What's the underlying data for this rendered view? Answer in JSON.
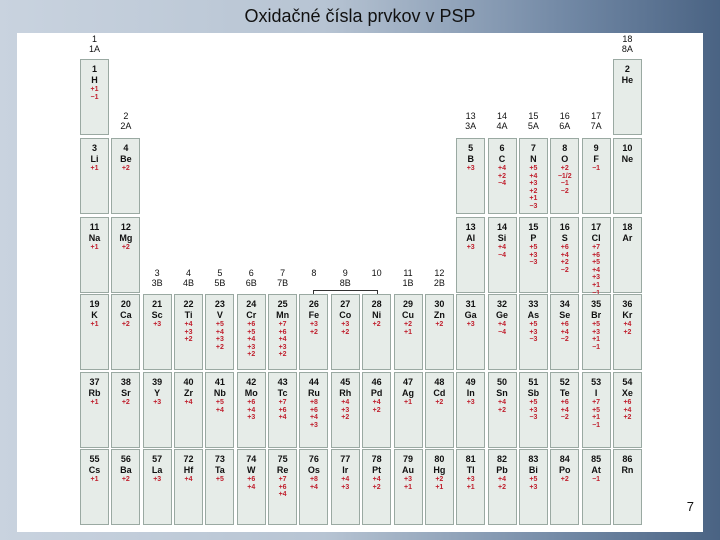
{
  "title": "Oxidačné čísla prvkov v PSP",
  "page_number": "7",
  "accent_color": "#c0202e",
  "group_headers": [
    {
      "col": 1,
      "row": 0,
      "num": "1",
      "lab": "1A"
    },
    {
      "col": 18,
      "row": 0,
      "num": "18",
      "lab": "8A"
    },
    {
      "col": 2,
      "row": 1,
      "num": "2",
      "lab": "2A"
    },
    {
      "col": 13,
      "row": 1,
      "num": "13",
      "lab": "3A"
    },
    {
      "col": 14,
      "row": 1,
      "num": "14",
      "lab": "4A"
    },
    {
      "col": 15,
      "row": 1,
      "num": "15",
      "lab": "5A"
    },
    {
      "col": 16,
      "row": 1,
      "num": "16",
      "lab": "6A"
    },
    {
      "col": 17,
      "row": 1,
      "num": "17",
      "lab": "7A"
    },
    {
      "col": 3,
      "row": 3,
      "num": "3",
      "lab": "3B"
    },
    {
      "col": 4,
      "row": 3,
      "num": "4",
      "lab": "4B"
    },
    {
      "col": 5,
      "row": 3,
      "num": "5",
      "lab": "5B"
    },
    {
      "col": 6,
      "row": 3,
      "num": "6",
      "lab": "6B"
    },
    {
      "col": 7,
      "row": 3,
      "num": "7",
      "lab": "7B"
    },
    {
      "col": 8,
      "row": 3,
      "num": "8",
      "lab": ""
    },
    {
      "col": 9,
      "row": 3,
      "num": "9",
      "lab": "8B"
    },
    {
      "col": 10,
      "row": 3,
      "num": "10",
      "lab": ""
    },
    {
      "col": 11,
      "row": 3,
      "num": "11",
      "lab": "1B"
    },
    {
      "col": 12,
      "row": 3,
      "num": "12",
      "lab": "2B"
    }
  ],
  "elements": [
    {
      "row": 1,
      "col": 1,
      "z": "1",
      "sym": "H",
      "ox": "+1\n−1"
    },
    {
      "row": 1,
      "col": 18,
      "z": "2",
      "sym": "He",
      "ox": ""
    },
    {
      "row": 2,
      "col": 1,
      "z": "3",
      "sym": "Li",
      "ox": "+1"
    },
    {
      "row": 2,
      "col": 2,
      "z": "4",
      "sym": "Be",
      "ox": "+2"
    },
    {
      "row": 2,
      "col": 13,
      "z": "5",
      "sym": "B",
      "ox": "+3"
    },
    {
      "row": 2,
      "col": 14,
      "z": "6",
      "sym": "C",
      "ox": "+4\n+2\n−4"
    },
    {
      "row": 2,
      "col": 15,
      "z": "7",
      "sym": "N",
      "ox": "+5\n+4\n+3\n+2\n+1\n−3"
    },
    {
      "row": 2,
      "col": 16,
      "z": "8",
      "sym": "O",
      "ox": "+2\n−1/2\n−1\n−2"
    },
    {
      "row": 2,
      "col": 17,
      "z": "9",
      "sym": "F",
      "ox": "−1"
    },
    {
      "row": 2,
      "col": 18,
      "z": "10",
      "sym": "Ne",
      "ox": ""
    },
    {
      "row": 3,
      "col": 1,
      "z": "11",
      "sym": "Na",
      "ox": "+1"
    },
    {
      "row": 3,
      "col": 2,
      "z": "12",
      "sym": "Mg",
      "ox": "+2"
    },
    {
      "row": 3,
      "col": 13,
      "z": "13",
      "sym": "Al",
      "ox": "+3"
    },
    {
      "row": 3,
      "col": 14,
      "z": "14",
      "sym": "Si",
      "ox": "+4\n−4"
    },
    {
      "row": 3,
      "col": 15,
      "z": "15",
      "sym": "P",
      "ox": "+5\n+3\n−3"
    },
    {
      "row": 3,
      "col": 16,
      "z": "16",
      "sym": "S",
      "ox": "+6\n+4\n+2\n−2"
    },
    {
      "row": 3,
      "col": 17,
      "z": "17",
      "sym": "Cl",
      "ox": "+7\n+6\n+5\n+4\n+3\n+1\n−1"
    },
    {
      "row": 3,
      "col": 18,
      "z": "18",
      "sym": "Ar",
      "ox": ""
    },
    {
      "row": 4,
      "col": 1,
      "z": "19",
      "sym": "K",
      "ox": "+1"
    },
    {
      "row": 4,
      "col": 2,
      "z": "20",
      "sym": "Ca",
      "ox": "+2"
    },
    {
      "row": 4,
      "col": 3,
      "z": "21",
      "sym": "Sc",
      "ox": "+3"
    },
    {
      "row": 4,
      "col": 4,
      "z": "22",
      "sym": "Ti",
      "ox": "+4\n+3\n+2"
    },
    {
      "row": 4,
      "col": 5,
      "z": "23",
      "sym": "V",
      "ox": "+5\n+4\n+3\n+2"
    },
    {
      "row": 4,
      "col": 6,
      "z": "24",
      "sym": "Cr",
      "ox": "+6\n+5\n+4\n+3\n+2"
    },
    {
      "row": 4,
      "col": 7,
      "z": "25",
      "sym": "Mn",
      "ox": "+7\n+6\n+4\n+3\n+2"
    },
    {
      "row": 4,
      "col": 8,
      "z": "26",
      "sym": "Fe",
      "ox": "+3\n+2"
    },
    {
      "row": 4,
      "col": 9,
      "z": "27",
      "sym": "Co",
      "ox": "+3\n+2"
    },
    {
      "row": 4,
      "col": 10,
      "z": "28",
      "sym": "Ni",
      "ox": "+2"
    },
    {
      "row": 4,
      "col": 11,
      "z": "29",
      "sym": "Cu",
      "ox": "+2\n+1"
    },
    {
      "row": 4,
      "col": 12,
      "z": "30",
      "sym": "Zn",
      "ox": "+2"
    },
    {
      "row": 4,
      "col": 13,
      "z": "31",
      "sym": "Ga",
      "ox": "+3"
    },
    {
      "row": 4,
      "col": 14,
      "z": "32",
      "sym": "Ge",
      "ox": "+4\n−4"
    },
    {
      "row": 4,
      "col": 15,
      "z": "33",
      "sym": "As",
      "ox": "+5\n+3\n−3"
    },
    {
      "row": 4,
      "col": 16,
      "z": "34",
      "sym": "Se",
      "ox": "+6\n+4\n−2"
    },
    {
      "row": 4,
      "col": 17,
      "z": "35",
      "sym": "Br",
      "ox": "+5\n+3\n+1\n−1"
    },
    {
      "row": 4,
      "col": 18,
      "z": "36",
      "sym": "Kr",
      "ox": "+4\n+2"
    },
    {
      "row": 5,
      "col": 1,
      "z": "37",
      "sym": "Rb",
      "ox": "+1"
    },
    {
      "row": 5,
      "col": 2,
      "z": "38",
      "sym": "Sr",
      "ox": "+2"
    },
    {
      "row": 5,
      "col": 3,
      "z": "39",
      "sym": "Y",
      "ox": "+3"
    },
    {
      "row": 5,
      "col": 4,
      "z": "40",
      "sym": "Zr",
      "ox": "+4"
    },
    {
      "row": 5,
      "col": 5,
      "z": "41",
      "sym": "Nb",
      "ox": "+5\n+4"
    },
    {
      "row": 5,
      "col": 6,
      "z": "42",
      "sym": "Mo",
      "ox": "+6\n+4\n+3"
    },
    {
      "row": 5,
      "col": 7,
      "z": "43",
      "sym": "Tc",
      "ox": "+7\n+6\n+4"
    },
    {
      "row": 5,
      "col": 8,
      "z": "44",
      "sym": "Ru",
      "ox": "+8\n+6\n+4\n+3"
    },
    {
      "row": 5,
      "col": 9,
      "z": "45",
      "sym": "Rh",
      "ox": "+4\n+3\n+2"
    },
    {
      "row": 5,
      "col": 10,
      "z": "46",
      "sym": "Pd",
      "ox": "+4\n+2"
    },
    {
      "row": 5,
      "col": 11,
      "z": "47",
      "sym": "Ag",
      "ox": "+1"
    },
    {
      "row": 5,
      "col": 12,
      "z": "48",
      "sym": "Cd",
      "ox": "+2"
    },
    {
      "row": 5,
      "col": 13,
      "z": "49",
      "sym": "In",
      "ox": "+3"
    },
    {
      "row": 5,
      "col": 14,
      "z": "50",
      "sym": "Sn",
      "ox": "+4\n+2"
    },
    {
      "row": 5,
      "col": 15,
      "z": "51",
      "sym": "Sb",
      "ox": "+5\n+3\n−3"
    },
    {
      "row": 5,
      "col": 16,
      "z": "52",
      "sym": "Te",
      "ox": "+6\n+4\n−2"
    },
    {
      "row": 5,
      "col": 17,
      "z": "53",
      "sym": "I",
      "ox": "+7\n+5\n+1\n−1"
    },
    {
      "row": 5,
      "col": 18,
      "z": "54",
      "sym": "Xe",
      "ox": "+6\n+4\n+2"
    },
    {
      "row": 6,
      "col": 1,
      "z": "55",
      "sym": "Cs",
      "ox": "+1"
    },
    {
      "row": 6,
      "col": 2,
      "z": "56",
      "sym": "Ba",
      "ox": "+2"
    },
    {
      "row": 6,
      "col": 3,
      "z": "57",
      "sym": "La",
      "ox": "+3"
    },
    {
      "row": 6,
      "col": 4,
      "z": "72",
      "sym": "Hf",
      "ox": "+4"
    },
    {
      "row": 6,
      "col": 5,
      "z": "73",
      "sym": "Ta",
      "ox": "+5"
    },
    {
      "row": 6,
      "col": 6,
      "z": "74",
      "sym": "W",
      "ox": "+6\n+4"
    },
    {
      "row": 6,
      "col": 7,
      "z": "75",
      "sym": "Re",
      "ox": "+7\n+6\n+4"
    },
    {
      "row": 6,
      "col": 8,
      "z": "76",
      "sym": "Os",
      "ox": "+8\n+4"
    },
    {
      "row": 6,
      "col": 9,
      "z": "77",
      "sym": "Ir",
      "ox": "+4\n+3"
    },
    {
      "row": 6,
      "col": 10,
      "z": "78",
      "sym": "Pt",
      "ox": "+4\n+2"
    },
    {
      "row": 6,
      "col": 11,
      "z": "79",
      "sym": "Au",
      "ox": "+3\n+1"
    },
    {
      "row": 6,
      "col": 12,
      "z": "80",
      "sym": "Hg",
      "ox": "+2\n+1"
    },
    {
      "row": 6,
      "col": 13,
      "z": "81",
      "sym": "Tl",
      "ox": "+3\n+1"
    },
    {
      "row": 6,
      "col": 14,
      "z": "82",
      "sym": "Pb",
      "ox": "+4\n+2"
    },
    {
      "row": 6,
      "col": 15,
      "z": "83",
      "sym": "Bi",
      "ox": "+5\n+3"
    },
    {
      "row": 6,
      "col": 16,
      "z": "84",
      "sym": "Po",
      "ox": "+2"
    },
    {
      "row": 6,
      "col": 17,
      "z": "85",
      "sym": "At",
      "ox": "−1"
    },
    {
      "row": 6,
      "col": 18,
      "z": "86",
      "sym": "Rn",
      "ox": ""
    }
  ]
}
